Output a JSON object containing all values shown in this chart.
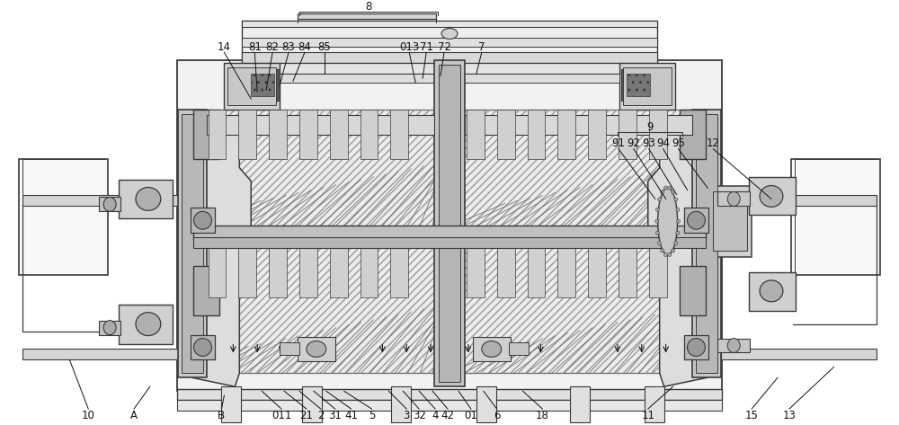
{
  "bg_color": "#ffffff",
  "lc": "#3a3a3a",
  "dc": "#111111",
  "fc_light": "#f0f0f0",
  "fc_mid": "#d8d8d8",
  "fc_dark": "#aaaaaa",
  "fc_darker": "#888888",
  "fc_box": "#f5f5f5",
  "label_fs": 8.5,
  "label_color": "#111111",
  "line_lw": 0.8,
  "thick_lw": 1.4
}
